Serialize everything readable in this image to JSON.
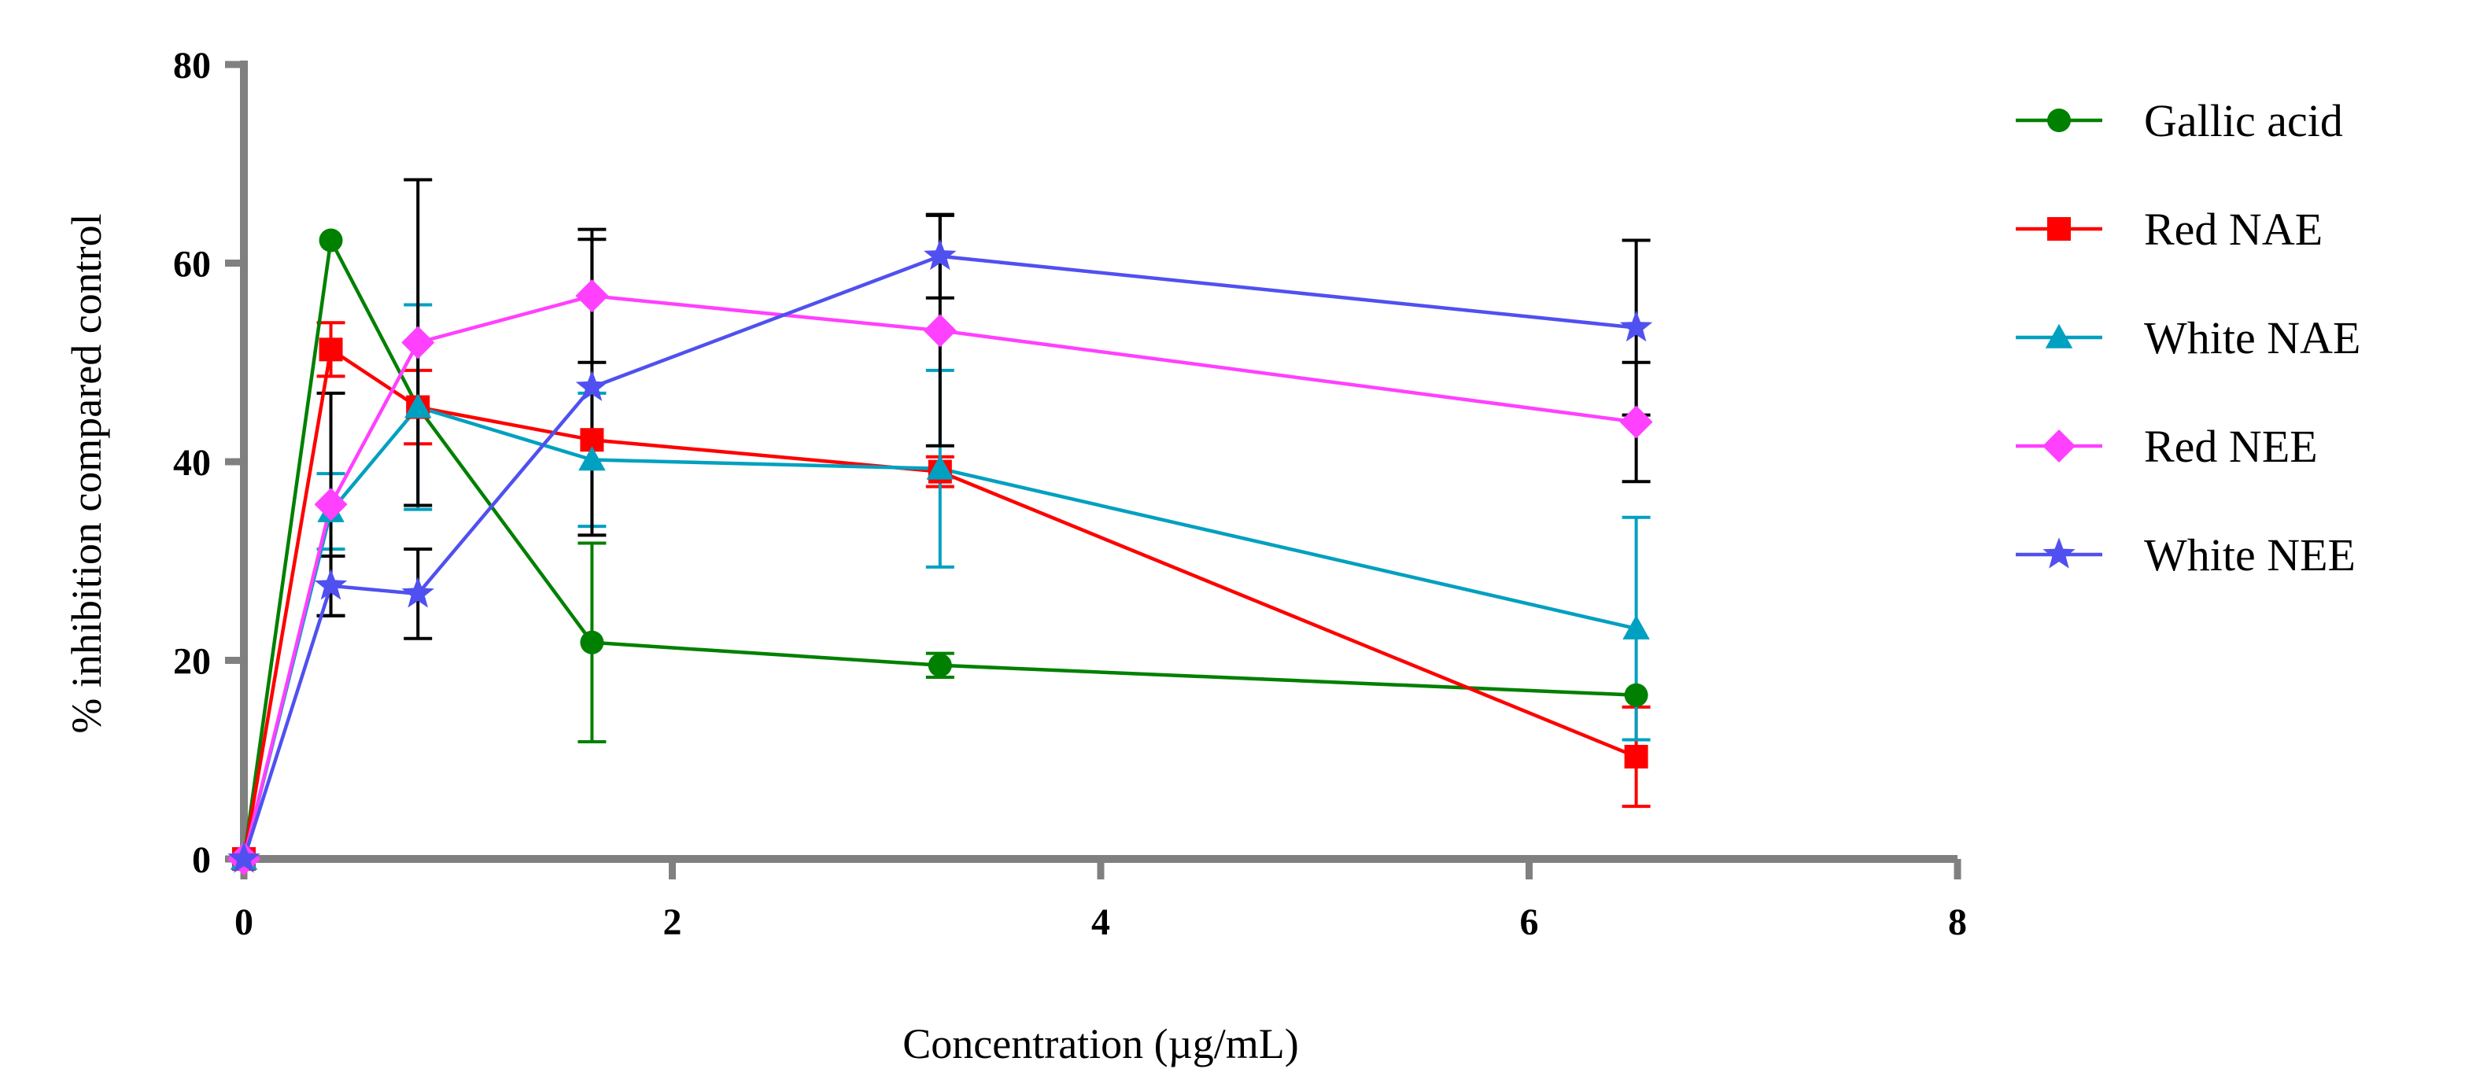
{
  "chart_data": {
    "type": "line",
    "title": "",
    "xlabel": "Concentration (µg/mL)",
    "ylabel": "% inhibition compared control",
    "xlim": [
      0,
      8
    ],
    "ylim": [
      0,
      80
    ],
    "xticks": [
      0,
      2,
      4,
      6,
      8
    ],
    "yticks": [
      0,
      20,
      40,
      60,
      80
    ],
    "x": [
      0,
      0.406,
      0.8125,
      1.625,
      3.25,
      6.5
    ],
    "legend_position": "right",
    "grid": false,
    "series": [
      {
        "name": "Gallic acid",
        "color": "#008000",
        "marker": "circle",
        "values": [
          0,
          62.3,
          45.5,
          21.8,
          19.5,
          16.5
        ],
        "errors": [
          0,
          0,
          0,
          10.0,
          1.2,
          0
        ]
      },
      {
        "name": "Red NAE",
        "color": "#ff0000",
        "marker": "square",
        "values": [
          0,
          51.3,
          45.5,
          42.2,
          39.0,
          10.3
        ],
        "errors": [
          0,
          2.7,
          3.7,
          0,
          1.5,
          5.0
        ]
      },
      {
        "name": "White NAE",
        "color": "#00a0c0",
        "marker": "triangle",
        "values": [
          0,
          35.0,
          45.5,
          40.2,
          39.3,
          23.2
        ],
        "errors": [
          0,
          3.8,
          10.3,
          6.7,
          9.9,
          11.2
        ]
      },
      {
        "name": "Red NEE",
        "color": "#ff40ff",
        "marker": "diamond",
        "values": [
          0,
          35.7,
          52.0,
          56.7,
          53.2,
          44.0
        ],
        "errors": [
          0,
          11.2,
          16.4,
          6.7,
          11.6,
          6.0
        ]
      },
      {
        "name": "White NEE",
        "color": "#5050f0",
        "marker": "star",
        "values": [
          0,
          27.5,
          26.7,
          47.5,
          60.7,
          53.5
        ],
        "errors": [
          0,
          3.0,
          4.5,
          14.9,
          4.2,
          8.8
        ]
      }
    ]
  }
}
